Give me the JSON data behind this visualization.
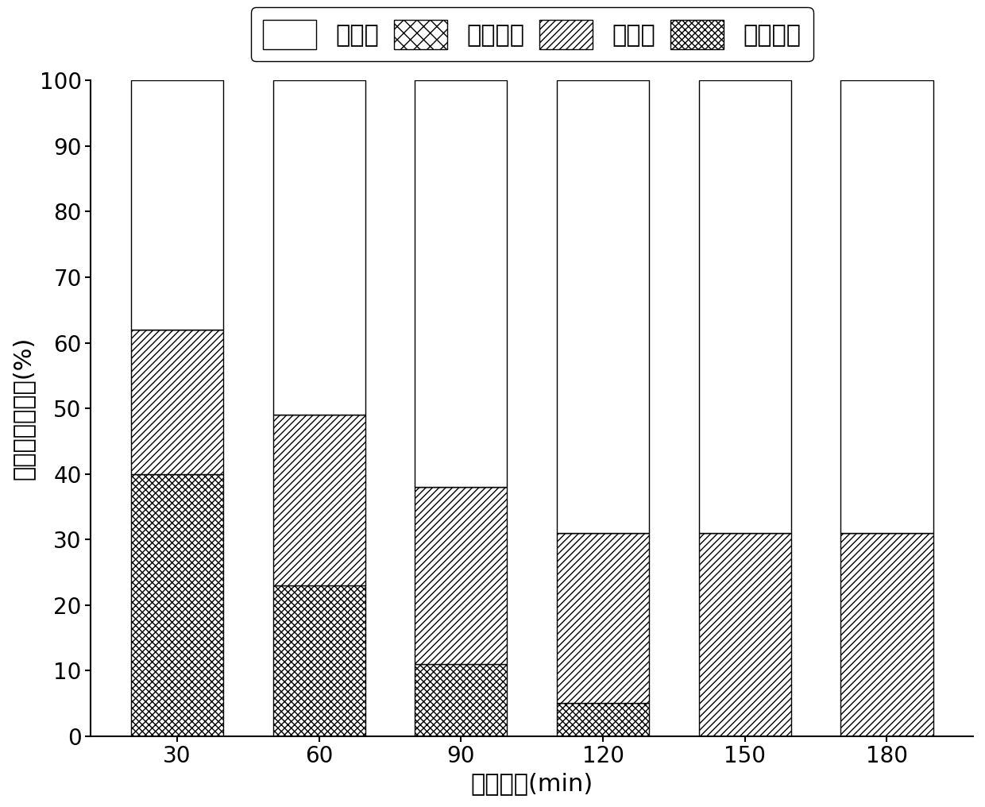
{
  "categories": [
    30,
    60,
    90,
    120,
    150,
    180
  ],
  "xlabel": "反应时间(min)",
  "ylabel": "反应后氮百分比(%)",
  "ylim": [
    0,
    100
  ],
  "yticks": [
    0,
    10,
    20,
    30,
    40,
    50,
    60,
    70,
    80,
    90,
    100
  ],
  "legend_labels": [
    "气态氮",
    "亚确态氮",
    "确态氮",
    "剩余氨氮"
  ],
  "data": {
    "qi_tai_dan": [
      38,
      51,
      62,
      69,
      69,
      69
    ],
    "ya_xiao_dan": [
      0,
      0,
      0,
      0,
      0,
      0
    ],
    "xiao_dan": [
      22,
      26,
      27,
      26,
      31,
      31
    ],
    "sheng_yu_an": [
      40,
      23,
      11,
      5,
      0,
      0
    ]
  },
  "bar_width": 0.65,
  "figsize": [
    12.4,
    10.16
  ],
  "dpi": 100,
  "fontsize_axis_label": 22,
  "fontsize_tick": 20,
  "fontsize_legend": 22
}
